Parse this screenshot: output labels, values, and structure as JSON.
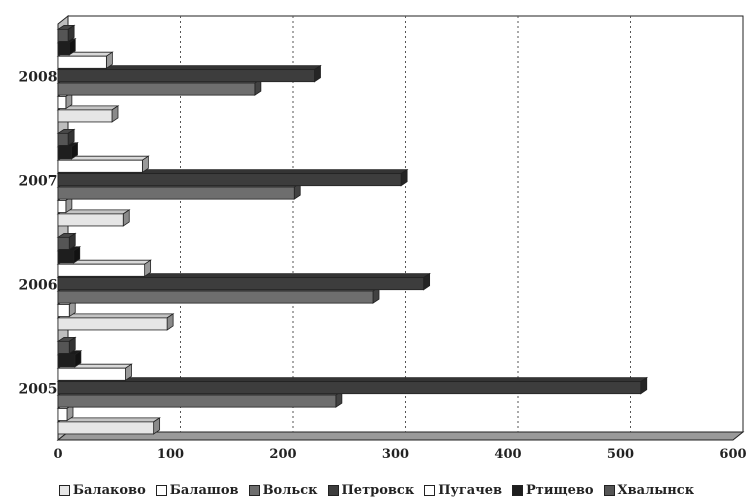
{
  "chart_data": {
    "type": "bar",
    "orientation": "horizontal",
    "three_d": true,
    "categories": [
      "2005",
      "2006",
      "2007",
      "2008"
    ],
    "xlim": [
      0,
      600
    ],
    "xticks": [
      "0",
      "100",
      "200",
      "300",
      "400",
      "500",
      "600"
    ],
    "grid": "vertical-dotted",
    "legend_position": "bottom",
    "series": [
      {
        "name": "Балаково",
        "color": "#e6e6e6",
        "values": [
          85,
          97,
          58,
          48
        ]
      },
      {
        "name": "Балашов",
        "color": "#ffffff",
        "values": [
          8,
          10,
          7,
          7
        ]
      },
      {
        "name": "Вольск",
        "color": "#6e6e6e",
        "values": [
          247,
          280,
          210,
          175
        ]
      },
      {
        "name": "Петровск",
        "color": "#3d3d3d",
        "values": [
          518,
          325,
          305,
          228
        ]
      },
      {
        "name": "Пугачев",
        "color": "#ffffff",
        "values": [
          60,
          77,
          75,
          43
        ]
      },
      {
        "name": "Ртищево",
        "color": "#1e1e1e",
        "values": [
          15,
          14,
          12,
          10
        ]
      },
      {
        "name": "Хвалынск",
        "color": "#555555",
        "values": [
          10,
          10,
          9,
          9
        ]
      }
    ]
  }
}
